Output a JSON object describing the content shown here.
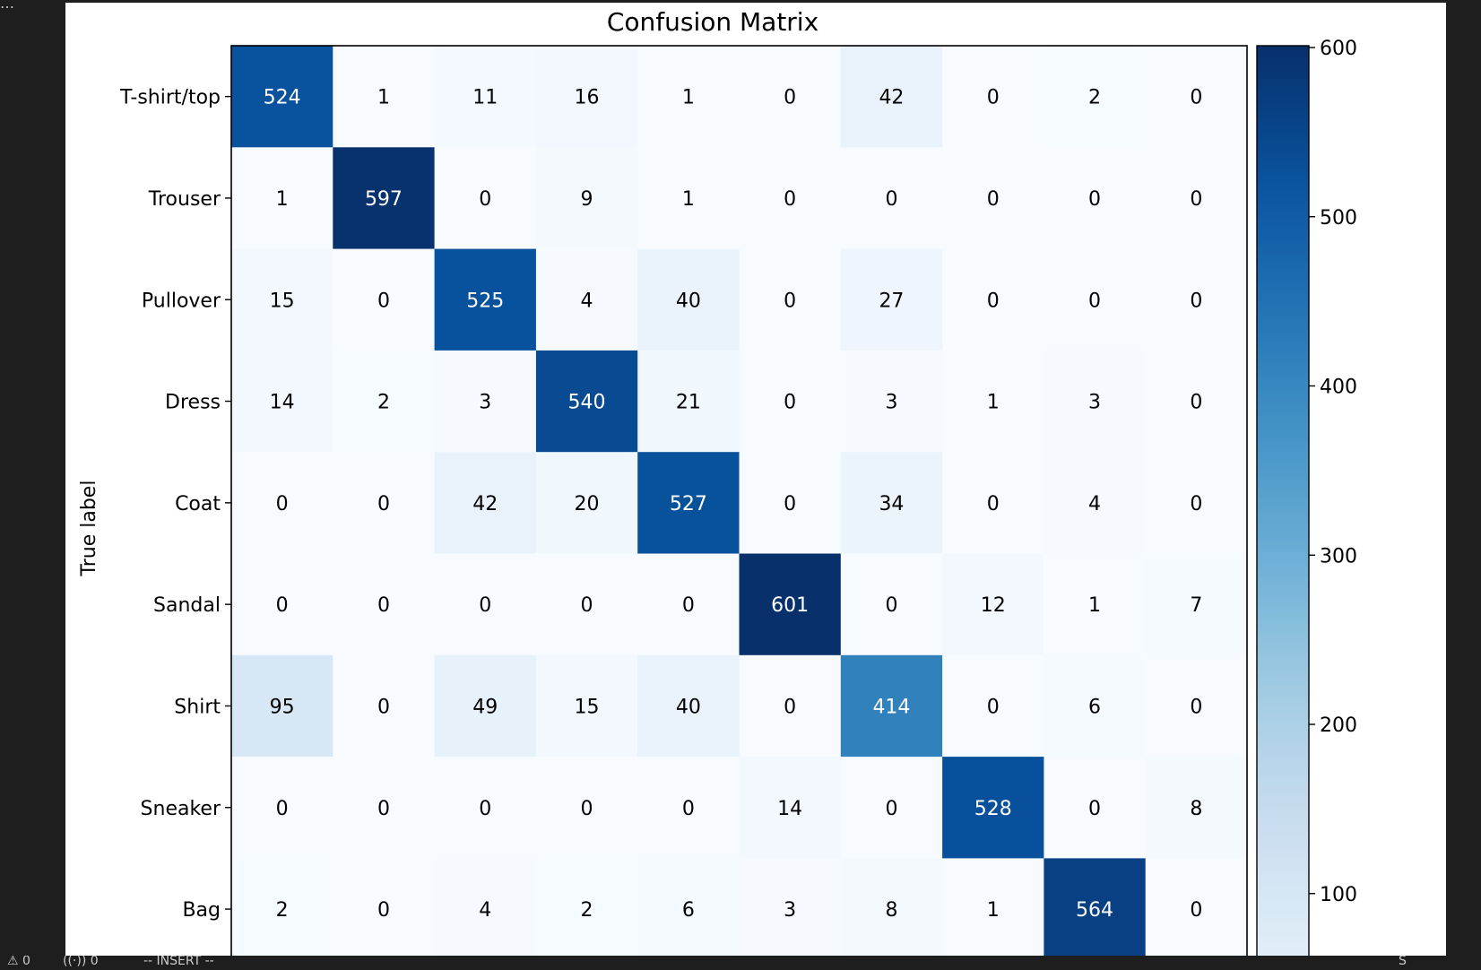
{
  "editor": {
    "more_label": "…",
    "status_bar": {
      "warnings_label": "⚠ 0",
      "ports_label": "((·)) 0",
      "mode_label": "-- INSERT --",
      "right_label": "S"
    }
  },
  "colors": {
    "window_bg": "#1e1e1e",
    "plot_bg": "#ffffff",
    "colormap": "Blues",
    "text_light": "#ffffff",
    "text_dark": "#000000"
  },
  "chart_data": {
    "type": "heatmap",
    "title": "Confusion Matrix",
    "ylabel": "True label",
    "xlabel": "",
    "row_labels": [
      "T-shirt/top",
      "Trouser",
      "Pullover",
      "Dress",
      "Coat",
      "Sandal",
      "Shirt",
      "Sneaker",
      "Bag"
    ],
    "values": [
      [
        524,
        1,
        11,
        16,
        1,
        0,
        42,
        0,
        2,
        0
      ],
      [
        1,
        597,
        0,
        9,
        1,
        0,
        0,
        0,
        0,
        0
      ],
      [
        15,
        0,
        525,
        4,
        40,
        0,
        27,
        0,
        0,
        0
      ],
      [
        14,
        2,
        3,
        540,
        21,
        0,
        3,
        1,
        3,
        0
      ],
      [
        0,
        0,
        42,
        20,
        527,
        0,
        34,
        0,
        4,
        0
      ],
      [
        0,
        0,
        0,
        0,
        0,
        601,
        0,
        12,
        1,
        7
      ],
      [
        95,
        0,
        49,
        15,
        40,
        0,
        414,
        0,
        6,
        0
      ],
      [
        0,
        0,
        0,
        0,
        0,
        14,
        0,
        528,
        0,
        8
      ],
      [
        2,
        0,
        4,
        2,
        6,
        3,
        8,
        1,
        564,
        0
      ]
    ],
    "vmin": 0,
    "vmax": 601,
    "colormap": "Blues",
    "colorbar_ticks": [
      100,
      200,
      300,
      400,
      500,
      600
    ],
    "text_color_threshold": 300.5
  }
}
